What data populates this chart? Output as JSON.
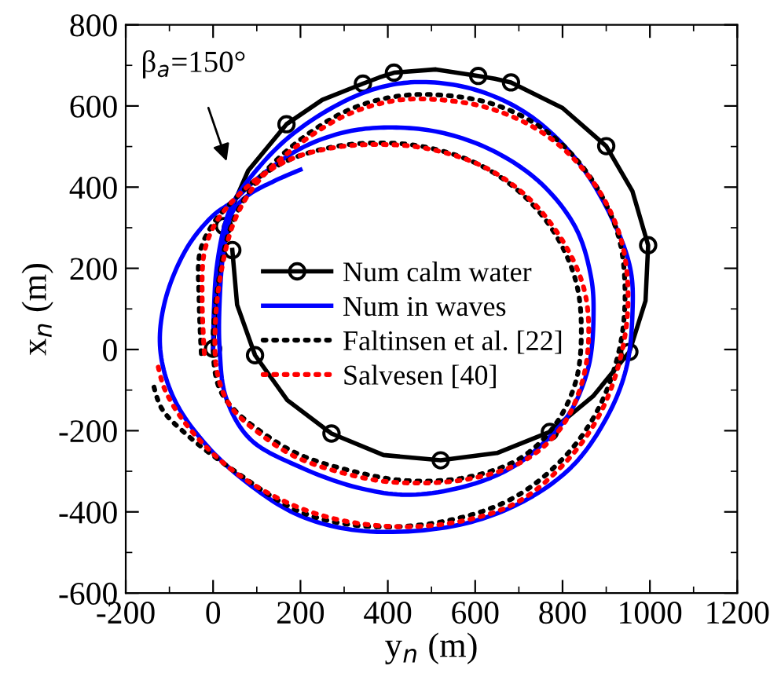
{
  "chart_data": {
    "type": "line",
    "xlabel": "y$_{n}$ (m)",
    "ylabel": "x$_{n}$ (m)",
    "xlim": [
      -200,
      1200
    ],
    "xticks": [
      -200,
      0,
      200,
      400,
      600,
      800,
      1000,
      1200
    ],
    "ylim": [
      -600,
      800
    ],
    "yticks": [
      -600,
      -400,
      -200,
      0,
      200,
      400,
      600,
      800
    ],
    "grid": false,
    "legend": "center",
    "annotations": [
      "β$_{a}$=150°"
    ],
    "series": [
      {
        "name": "Num calm water",
        "color": "#000000",
        "marker": "circle",
        "line_style": "solid",
        "x": [
          0,
          10,
          25,
          80,
          168,
          250,
          343,
          380,
          414,
          510,
          607,
          645,
          682,
          800,
          900,
          960,
          996,
          990,
          953,
          870,
          771,
          650,
          521,
          390,
          271,
          170,
          96,
          55,
          44
        ],
        "values": [
          2,
          150,
          304,
          440,
          555,
          615,
          655,
          670,
          682,
          690,
          674,
          667,
          658,
          595,
          501,
          390,
          257,
          120,
          -6,
          -115,
          -203,
          -255,
          -273,
          -260,
          -207,
          -125,
          -14,
          110,
          245
        ]
      },
      {
        "name": "Num in waves",
        "color": "#0000ff",
        "marker": "none",
        "line_style": "solid",
        "x": [
          0,
          2,
          8,
          25,
          45,
          90,
          170,
          280,
          380,
          478,
          600,
          720,
          830,
          910,
          955,
          960,
          945,
          900,
          820,
          700,
          550,
          343,
          200,
          80,
          -20,
          -90,
          -121,
          -110,
          -60,
          0,
          45,
          100,
          200,
          300,
          400,
          520,
          640,
          750,
          830,
          865,
          871,
          860,
          820,
          775,
          700,
          600,
          453,
          330,
          200,
          86,
          30,
          15,
          15,
          25,
          45,
          80,
          140,
          200
        ],
        "values": [
          0,
          100,
          200,
          300,
          360,
          430,
          520,
          600,
          645,
          659,
          640,
          580,
          470,
          330,
          200,
          87,
          -50,
          -170,
          -290,
          -380,
          -435,
          -447,
          -410,
          -330,
          -230,
          -120,
          0,
          120,
          250,
          330,
          365,
          420,
          495,
          535,
          547,
          535,
          490,
          410,
          300,
          180,
          87,
          -40,
          -150,
          -210,
          -280,
          -330,
          -358,
          -340,
          -290,
          -222,
          -120,
          0,
          120,
          250,
          340,
          380,
          415,
          443
        ]
      },
      {
        "name": "Faltinsen et al. [22]",
        "color": "#000000",
        "marker": "none",
        "line_style": "dotted",
        "x": [
          -27,
          -32,
          -30,
          0,
          40,
          100,
          180,
          280,
          378,
          480,
          600,
          700,
          780,
          830,
          843,
          830,
          780,
          700,
          580,
          443,
          320,
          200,
          121,
          50,
          14,
          0,
          10,
          40,
          90,
          180,
          300,
          400,
          503,
          640,
          760,
          860,
          925,
          943,
          930,
          880,
          800,
          680,
          520,
          346,
          200,
          50,
          -60,
          -118,
          -139
        ],
        "values": [
          -10,
          120,
          240,
          310,
          360,
          420,
          470,
          500,
          509,
          500,
          460,
          390,
          290,
          170,
          50,
          -80,
          -190,
          -270,
          -315,
          -323,
          -300,
          -260,
          -211,
          -150,
          -95,
          0,
          150,
          300,
          400,
          500,
          585,
          620,
          628,
          605,
          540,
          430,
          290,
          150,
          0,
          -150,
          -270,
          -370,
          -425,
          -435,
          -400,
          -300,
          -210,
          -145,
          -75
        ]
      },
      {
        "name": "Salvesen [40]",
        "color": "#ff0000",
        "marker": "none",
        "line_style": "dotted",
        "x": [
          -20,
          -25,
          -20,
          5,
          40,
          100,
          180,
          280,
          389,
          490,
          610,
          710,
          790,
          845,
          860,
          845,
          795,
          710,
          580,
          414,
          300,
          190,
          110,
          40,
          10,
          5,
          20,
          50,
          100,
          190,
          300,
          400,
          489,
          630,
          760,
          865,
          930,
          950,
          935,
          885,
          805,
          690,
          530,
          360,
          210,
          60,
          -50,
          -110,
          -129
        ],
        "values": [
          -10,
          120,
          240,
          310,
          360,
          420,
          470,
          498,
          505,
          495,
          455,
          385,
          285,
          165,
          50,
          -80,
          -195,
          -275,
          -320,
          -327,
          -305,
          -265,
          -210,
          -140,
          -60,
          60,
          200,
          320,
          410,
          500,
          575,
          610,
          617,
          595,
          530,
          420,
          285,
          140,
          -10,
          -160,
          -280,
          -380,
          -430,
          -432,
          -395,
          -310,
          -200,
          -100,
          -25
        ]
      }
    ]
  }
}
